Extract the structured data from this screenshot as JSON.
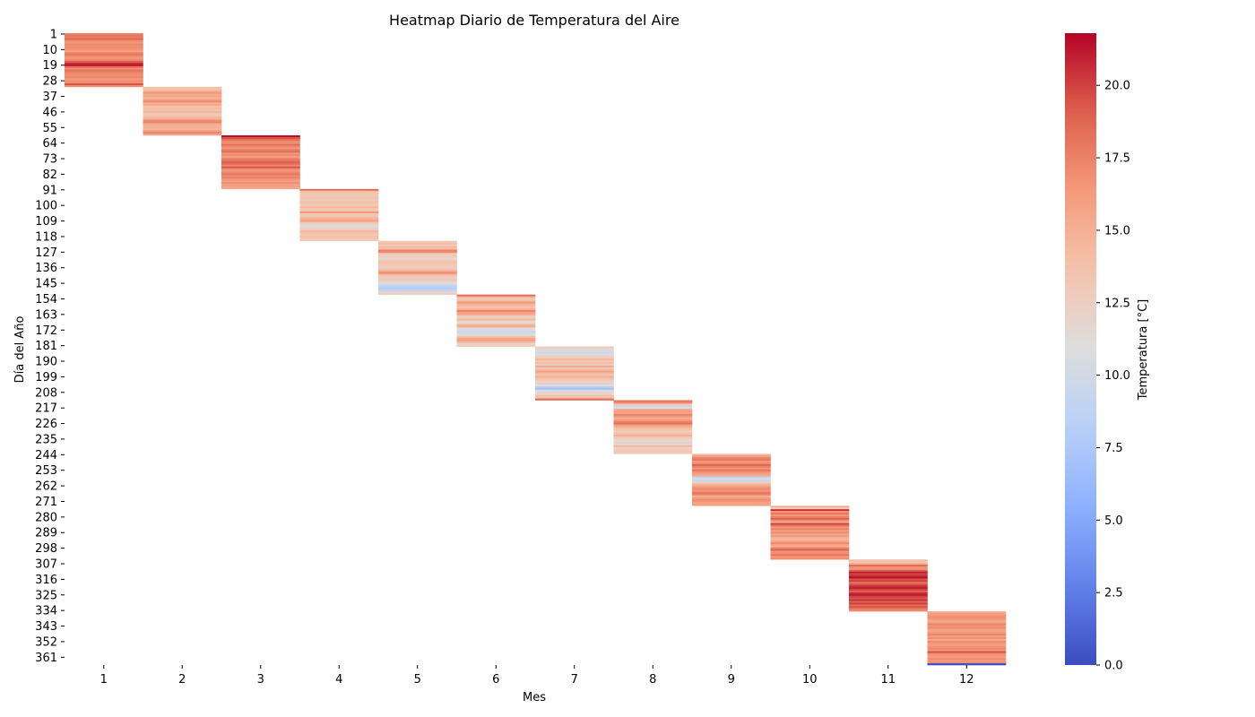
{
  "chart_data": {
    "type": "heatmap",
    "title": "Heatmap Diario de Temperatura del Aire",
    "xlabel": "Mes",
    "ylabel": "Día del Año",
    "x_categories": [
      1,
      2,
      3,
      4,
      5,
      6,
      7,
      8,
      9,
      10,
      11,
      12
    ],
    "y_tick_labels": [
      1,
      10,
      19,
      28,
      37,
      46,
      55,
      64,
      73,
      82,
      91,
      100,
      109,
      118,
      127,
      136,
      145,
      154,
      163,
      172,
      181,
      190,
      199,
      208,
      217,
      226,
      235,
      244,
      253,
      262,
      271,
      280,
      289,
      298,
      307,
      316,
      325,
      334,
      343,
      352,
      361
    ],
    "y_range": [
      1,
      365
    ],
    "colorbar": {
      "label": "Temperatura [°C]",
      "min": 0.0,
      "max": 21.8,
      "ticks": [
        "0.0",
        "2.5",
        "5.0",
        "7.5",
        "10.0",
        "12.5",
        "15.0",
        "17.5",
        "20.0"
      ],
      "colormap": "coolwarm"
    },
    "months": [
      {
        "month": 1,
        "start_day": 1,
        "days": 31,
        "values": [
          17.5,
          18.0,
          17.8,
          18.5,
          17.0,
          16.5,
          17.2,
          16.8,
          17.0,
          16.5,
          16.0,
          17.5,
          18.0,
          17.0,
          16.5,
          17.2,
          19.0,
          20.5,
          21.5,
          18.5,
          17.0,
          18.2,
          17.5,
          17.0,
          16.8,
          17.2,
          16.5,
          17.0,
          16.8,
          19.5,
          17.0
        ]
      },
      {
        "month": 2,
        "start_day": 32,
        "days": 28,
        "values": [
          14.0,
          13.5,
          15.0,
          16.5,
          15.2,
          15.8,
          14.5,
          16.0,
          17.2,
          14.8,
          15.5,
          13.8,
          14.2,
          13.5,
          14.8,
          13.2,
          13.0,
          14.5,
          15.0,
          16.8,
          17.5,
          15.2,
          14.8,
          15.0,
          14.5,
          16.2,
          17.5,
          15.8
        ]
      },
      {
        "month": 3,
        "start_day": 60,
        "days": 31,
        "values": [
          21.5,
          19.5,
          18.5,
          17.0,
          16.8,
          18.5,
          17.2,
          16.5,
          17.8,
          18.5,
          16.5,
          17.0,
          16.2,
          17.5,
          18.0,
          19.0,
          18.5,
          17.2,
          19.5,
          17.0,
          16.5,
          17.2,
          18.0,
          16.8,
          17.5,
          16.5,
          16.0,
          17.0,
          15.8,
          16.2,
          15.5
        ]
      },
      {
        "month": 4,
        "start_day": 91,
        "days": 30,
        "values": [
          18.5,
          14.0,
          13.5,
          13.0,
          13.2,
          13.8,
          12.5,
          14.0,
          13.5,
          13.0,
          14.5,
          13.2,
          13.8,
          16.5,
          13.5,
          13.0,
          14.2,
          15.0,
          16.0,
          13.5,
          12.0,
          10.5,
          12.2,
          13.0,
          14.5,
          13.8,
          13.2,
          14.0,
          13.5,
          13.0
        ]
      },
      {
        "month": 5,
        "start_day": 121,
        "days": 31,
        "values": [
          13.5,
          14.0,
          13.2,
          14.5,
          13.8,
          17.5,
          17.0,
          12.5,
          13.0,
          12.5,
          11.8,
          13.5,
          14.0,
          13.2,
          12.8,
          12.5,
          13.8,
          15.5,
          17.0,
          14.5,
          13.0,
          12.5,
          13.5,
          12.0,
          11.0,
          9.5,
          8.5,
          8.0,
          9.0,
          11.5,
          12.5
        ]
      },
      {
        "month": 6,
        "start_day": 152,
        "days": 30,
        "values": [
          18.5,
          15.0,
          12.5,
          14.0,
          16.5,
          15.0,
          14.2,
          13.5,
          15.0,
          17.5,
          16.0,
          15.5,
          12.5,
          13.0,
          14.5,
          12.0,
          11.5,
          14.8,
          15.2,
          11.5,
          10.5,
          9.0,
          10.0,
          11.5,
          14.0,
          15.5,
          16.0,
          14.5,
          12.0,
          13.0
        ]
      },
      {
        "month": 7,
        "start_day": 182,
        "days": 31,
        "values": [
          13.0,
          11.5,
          10.5,
          9.5,
          10.8,
          12.0,
          13.0,
          14.5,
          13.5,
          14.0,
          12.5,
          15.5,
          13.0,
          14.5,
          16.0,
          14.5,
          13.5,
          15.0,
          14.0,
          13.5,
          11.5,
          12.5,
          11.0,
          8.0,
          7.0,
          10.5,
          12.0,
          11.5,
          14.0,
          13.5,
          18.5
        ]
      },
      {
        "month": 8,
        "start_day": 213,
        "days": 31,
        "values": [
          18.0,
          17.0,
          13.5,
          9.5,
          11.0,
          15.5,
          16.0,
          15.5,
          17.5,
          16.5,
          15.0,
          16.0,
          17.5,
          18.5,
          16.0,
          15.0,
          14.0,
          13.5,
          12.5,
          14.0,
          15.0,
          13.5,
          12.0,
          11.5,
          13.0,
          10.5,
          14.5,
          12.5,
          13.0,
          13.5,
          12.8
        ]
      },
      {
        "month": 9,
        "start_day": 244,
        "days": 30,
        "values": [
          14.5,
          16.0,
          17.5,
          18.0,
          16.5,
          17.0,
          19.0,
          17.5,
          16.5,
          18.0,
          17.0,
          16.0,
          15.5,
          8.5,
          11.0,
          9.5,
          12.0,
          14.5,
          15.5,
          16.5,
          17.0,
          16.5,
          18.0,
          17.5,
          15.0,
          16.0,
          17.0,
          16.5,
          15.5,
          16.0
        ]
      },
      {
        "month": 10,
        "start_day": 274,
        "days": 31,
        "values": [
          15.0,
          13.0,
          20.5,
          16.5,
          18.0,
          16.5,
          17.5,
          19.0,
          17.0,
          15.5,
          20.0,
          18.0,
          16.5,
          17.5,
          16.0,
          17.0,
          15.5,
          16.5,
          15.0,
          14.5,
          15.5,
          17.0,
          16.0,
          15.0,
          17.5,
          19.0,
          16.5,
          17.0,
          18.0,
          16.5,
          17.0
        ]
      },
      {
        "month": 11,
        "start_day": 305,
        "days": 30,
        "values": [
          14.0,
          13.5,
          15.0,
          18.5,
          17.0,
          16.5,
          19.0,
          21.0,
          20.0,
          20.5,
          21.5,
          19.5,
          20.0,
          18.0,
          19.5,
          20.5,
          21.0,
          20.0,
          19.0,
          20.5,
          21.2,
          20.0,
          19.5,
          20.5,
          19.0,
          20.0,
          18.5,
          19.5,
          18.0,
          17.0
        ]
      },
      {
        "month": 12,
        "start_day": 335,
        "days": 31,
        "values": [
          15.5,
          16.0,
          16.5,
          17.0,
          16.5,
          15.5,
          16.0,
          17.5,
          16.5,
          17.0,
          16.0,
          15.8,
          16.5,
          17.5,
          16.0,
          16.8,
          15.5,
          17.0,
          16.5,
          16.0,
          16.8,
          17.2,
          16.5,
          19.5,
          17.0,
          16.5,
          16.0,
          17.0,
          16.5,
          16.8,
          0.0
        ]
      }
    ]
  }
}
